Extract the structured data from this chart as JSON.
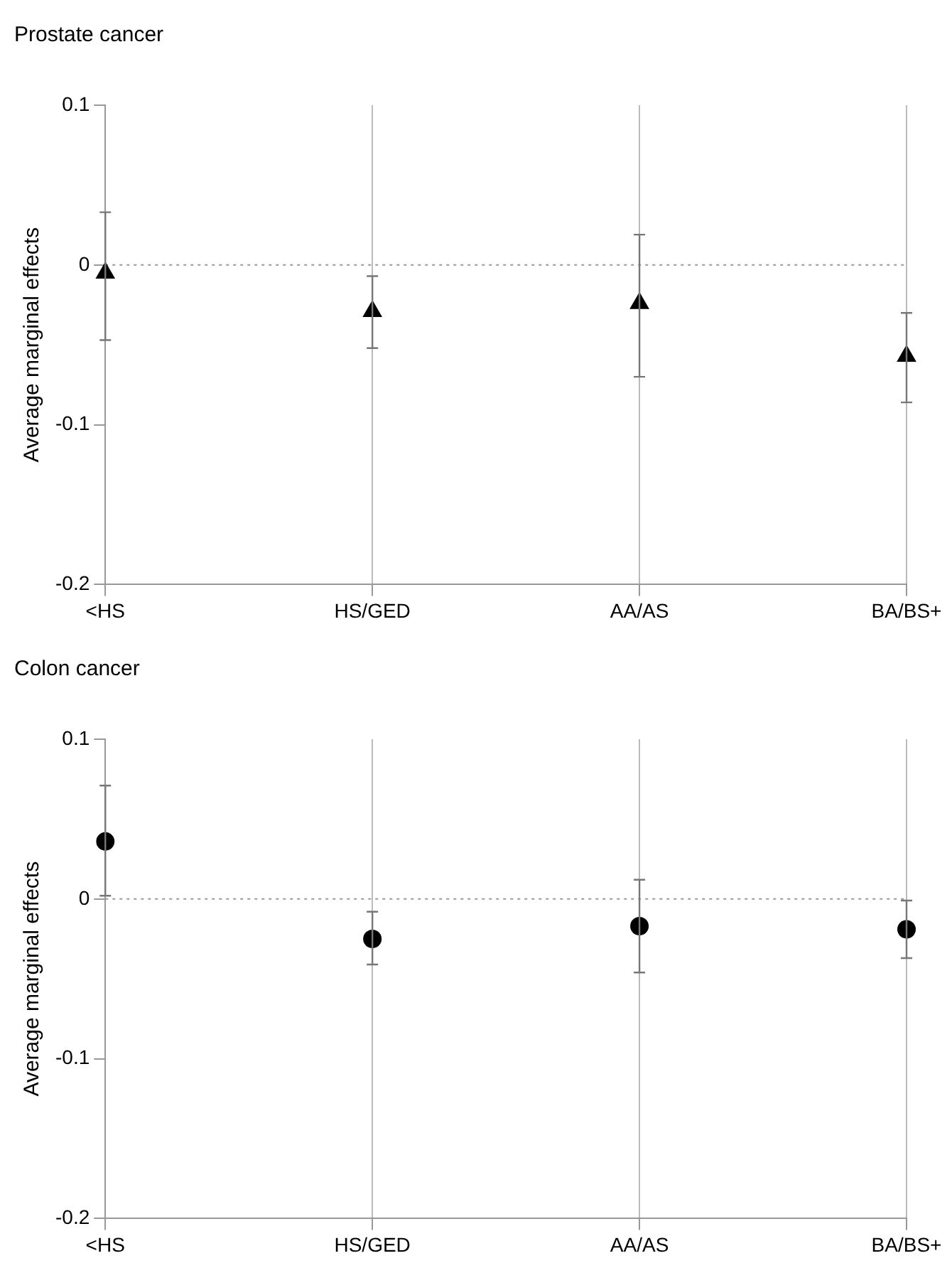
{
  "chart_data": [
    {
      "type": "scatter",
      "title": "Prostate cancer",
      "ylabel": "Average marginal effects",
      "categories": [
        "<HS",
        "HS/GED",
        "AA/AS",
        "BA/BS+"
      ],
      "series": [
        {
          "color": "#000000",
          "marker": "triangle",
          "values": [
            -0.005,
            -0.029,
            -0.024,
            -0.057
          ],
          "errors": [
            [
              -0.047,
              0.033
            ],
            [
              -0.052,
              -0.007
            ],
            [
              -0.07,
              0.019
            ],
            [
              -0.086,
              -0.03
            ]
          ]
        }
      ],
      "ylim": [
        -0.2,
        0.1
      ],
      "yticks": [
        -0.2,
        -0.1,
        0,
        0.1
      ],
      "grid": "x",
      "legend": false,
      "ref_lines": [
        {
          "axis": "y",
          "value": 0,
          "line_style": "dotted",
          "color": "#999999"
        }
      ]
    },
    {
      "type": "scatter",
      "title": "Colon cancer",
      "ylabel": "Average marginal effects",
      "categories": [
        "<HS",
        "HS/GED",
        "AA/AS",
        "BA/BS+"
      ],
      "series": [
        {
          "color": "#000000",
          "marker": "circle",
          "values": [
            0.036,
            -0.025,
            -0.017,
            -0.019
          ],
          "errors": [
            [
              0.002,
              0.071
            ],
            [
              -0.041,
              -0.008
            ],
            [
              -0.046,
              0.012
            ],
            [
              -0.037,
              -0.001
            ]
          ]
        }
      ],
      "ylim": [
        -0.2,
        0.1
      ],
      "yticks": [
        -0.2,
        -0.1,
        0,
        0.1
      ],
      "grid": "x",
      "legend": false,
      "ref_lines": [
        {
          "axis": "y",
          "value": 0,
          "line_style": "dotted",
          "color": "#999999"
        }
      ]
    }
  ]
}
